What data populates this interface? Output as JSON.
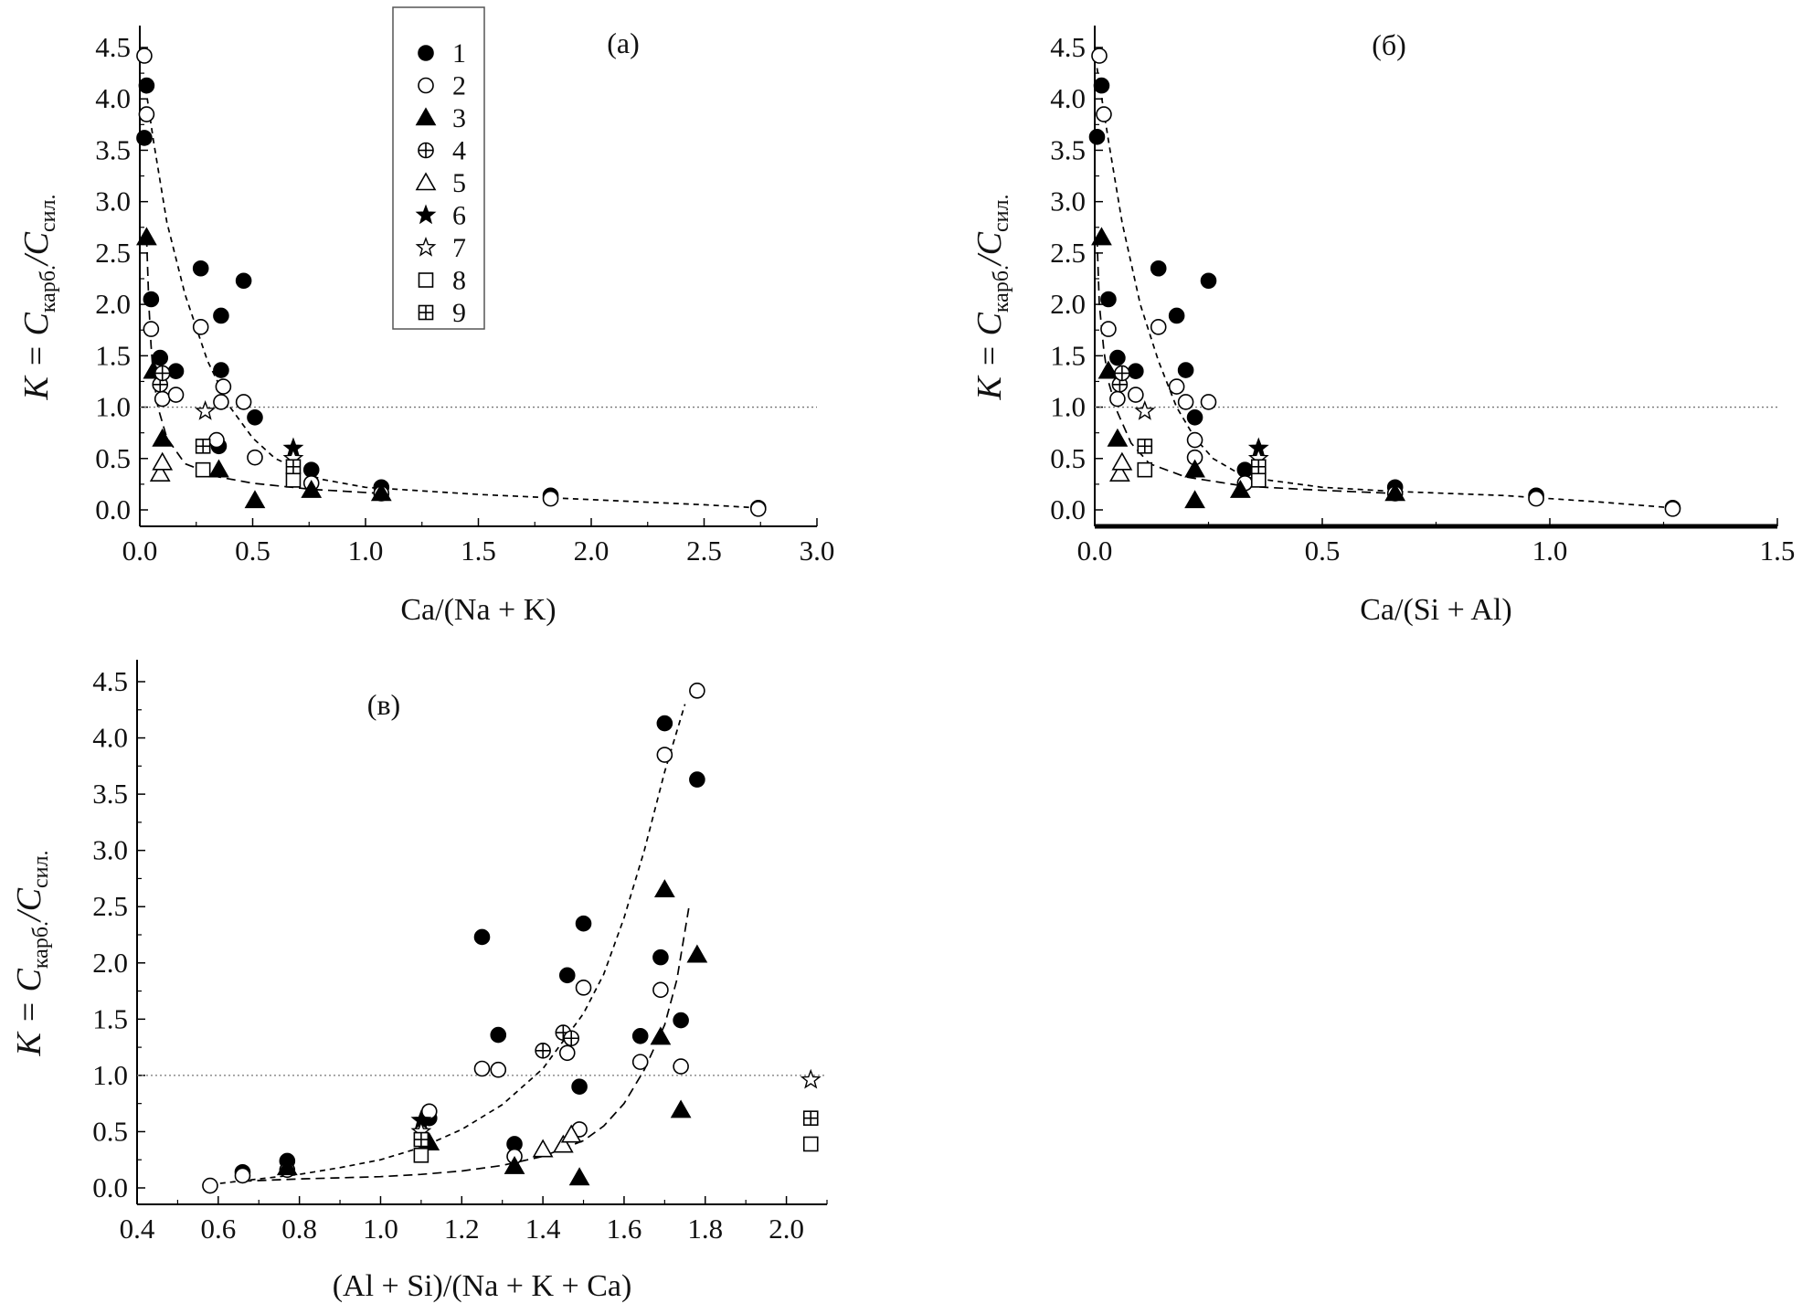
{
  "chart_data": [
    {
      "panel_label": "(a)",
      "type": "scatter",
      "xlabel": "Ca/(Na + K)",
      "ylabel": {
        "main": "K = C",
        "sub1": "карб.",
        "mid": "/C",
        "sub2": "сил."
      },
      "xlim": [
        0,
        3.0
      ],
      "ylim": [
        0,
        4.5
      ],
      "x_ticks": [
        "0.0",
        "0.5",
        "1.0",
        "1.5",
        "2.0",
        "2.5",
        "3.0"
      ],
      "y_ticks": [
        "0.0",
        "0.5",
        "1.0",
        "1.5",
        "2.0",
        "2.5",
        "3.0",
        "3.5",
        "4.0",
        "4.5"
      ],
      "reference_line": 1.0,
      "series": [
        {
          "marker": "filled-circle",
          "points": [
            [
              0.02,
              3.62
            ],
            [
              0.03,
              4.13
            ],
            [
              0.05,
              2.05
            ],
            [
              0.09,
              1.48
            ],
            [
              0.16,
              1.35
            ],
            [
              0.27,
              2.35
            ],
            [
              0.36,
              1.89
            ],
            [
              0.46,
              2.23
            ],
            [
              0.36,
              1.36
            ],
            [
              0.35,
              0.62
            ],
            [
              0.51,
              0.9
            ],
            [
              0.76,
              0.39
            ],
            [
              1.07,
              0.22
            ],
            [
              1.82,
              0.14
            ],
            [
              2.74,
              0.02
            ]
          ]
        },
        {
          "marker": "open-circle",
          "points": [
            [
              0.02,
              4.42
            ],
            [
              0.03,
              3.85
            ],
            [
              0.05,
              1.76
            ],
            [
              0.1,
              1.08
            ],
            [
              0.16,
              1.12
            ],
            [
              0.27,
              1.78
            ],
            [
              0.36,
              1.05
            ],
            [
              0.37,
              1.2
            ],
            [
              0.46,
              1.05
            ],
            [
              0.34,
              0.68
            ],
            [
              0.51,
              0.51
            ],
            [
              0.76,
              0.26
            ],
            [
              1.07,
              0.16
            ],
            [
              1.82,
              0.11
            ],
            [
              2.74,
              0.01
            ]
          ]
        },
        {
          "marker": "filled-triangle",
          "points": [
            [
              0.03,
              2.65
            ],
            [
              0.06,
              1.35
            ],
            [
              0.1,
              0.69
            ],
            [
              0.35,
              0.39
            ],
            [
              0.51,
              0.09
            ],
            [
              0.76,
              0.19
            ],
            [
              1.07,
              0.16
            ]
          ]
        },
        {
          "marker": "circle-plus",
          "points": [
            [
              0.09,
              1.22
            ],
            [
              0.1,
              1.33
            ]
          ]
        },
        {
          "marker": "open-triangle",
          "points": [
            [
              0.09,
              0.35
            ],
            [
              0.1,
              0.46
            ]
          ]
        },
        {
          "marker": "filled-star",
          "points": [
            [
              0.68,
              0.6
            ]
          ]
        },
        {
          "marker": "open-star",
          "points": [
            [
              0.29,
              0.96
            ],
            [
              0.68,
              0.5
            ]
          ]
        },
        {
          "marker": "open-square",
          "points": [
            [
              0.28,
              0.39
            ],
            [
              0.68,
              0.29
            ]
          ]
        },
        {
          "marker": "square-plus",
          "points": [
            [
              0.28,
              0.62
            ],
            [
              0.68,
              0.42
            ]
          ]
        }
      ],
      "trend_curves": [
        [
          [
            0.02,
            4.2
          ],
          [
            0.06,
            3.6
          ],
          [
            0.12,
            2.8
          ],
          [
            0.2,
            2.1
          ],
          [
            0.3,
            1.45
          ],
          [
            0.4,
            1.0
          ],
          [
            0.5,
            0.7
          ],
          [
            0.6,
            0.5
          ],
          [
            0.8,
            0.3
          ],
          [
            1.0,
            0.22
          ],
          [
            1.5,
            0.15
          ],
          [
            2.0,
            0.1
          ],
          [
            2.5,
            0.05
          ],
          [
            2.74,
            0.02
          ]
        ],
        [
          [
            0.03,
            2.65
          ],
          [
            0.04,
            2.0
          ],
          [
            0.05,
            1.6
          ],
          [
            0.06,
            1.3
          ],
          [
            0.08,
            1.0
          ],
          [
            0.12,
            0.7
          ],
          [
            0.2,
            0.45
          ],
          [
            0.35,
            0.32
          ],
          [
            0.5,
            0.26
          ],
          [
            0.76,
            0.2
          ],
          [
            1.07,
            0.16
          ]
        ]
      ],
      "legend": {
        "labels": [
          "1",
          "2",
          "3",
          "4",
          "5",
          "6",
          "7",
          "8",
          "9"
        ],
        "placement": "top-center"
      }
    },
    {
      "panel_label": "(б)",
      "type": "scatter",
      "xlabel": "Ca/(Si + Al)",
      "ylabel": {
        "main": "K = C",
        "sub1": "карб.",
        "mid": "/C",
        "sub2": "сил."
      },
      "xlim": [
        0,
        1.5
      ],
      "ylim": [
        0,
        4.5
      ],
      "x_ticks": [
        "0.0",
        "0.5",
        "1.0",
        "1.5"
      ],
      "y_ticks": [
        "0.0",
        "0.5",
        "1.0",
        "1.5",
        "2.0",
        "2.5",
        "3.0",
        "3.5",
        "4.0",
        "4.5"
      ],
      "reference_line": 1.0,
      "series": [
        {
          "marker": "filled-circle",
          "points": [
            [
              0.005,
              3.63
            ],
            [
              0.015,
              4.13
            ],
            [
              0.03,
              2.05
            ],
            [
              0.05,
              1.48
            ],
            [
              0.09,
              1.35
            ],
            [
              0.14,
              2.35
            ],
            [
              0.18,
              1.89
            ],
            [
              0.25,
              2.23
            ],
            [
              0.2,
              1.36
            ],
            [
              0.22,
              0.9
            ],
            [
              0.33,
              0.39
            ],
            [
              0.66,
              0.22
            ],
            [
              0.97,
              0.14
            ],
            [
              1.27,
              0.02
            ]
          ]
        },
        {
          "marker": "open-circle",
          "points": [
            [
              0.01,
              4.42
            ],
            [
              0.02,
              3.85
            ],
            [
              0.03,
              1.76
            ],
            [
              0.05,
              1.08
            ],
            [
              0.09,
              1.12
            ],
            [
              0.14,
              1.78
            ],
            [
              0.18,
              1.2
            ],
            [
              0.2,
              1.05
            ],
            [
              0.25,
              1.05
            ],
            [
              0.22,
              0.68
            ],
            [
              0.22,
              0.51
            ],
            [
              0.33,
              0.26
            ],
            [
              0.66,
              0.16
            ],
            [
              0.97,
              0.11
            ],
            [
              1.27,
              0.01
            ]
          ]
        },
        {
          "marker": "filled-triangle",
          "points": [
            [
              0.015,
              2.65
            ],
            [
              0.03,
              1.35
            ],
            [
              0.05,
              0.69
            ],
            [
              0.22,
              0.39
            ],
            [
              0.22,
              0.09
            ],
            [
              0.32,
              0.19
            ],
            [
              0.66,
              0.16
            ]
          ]
        },
        {
          "marker": "circle-plus",
          "points": [
            [
              0.055,
              1.22
            ],
            [
              0.06,
              1.33
            ]
          ]
        },
        {
          "marker": "open-triangle",
          "points": [
            [
              0.055,
              0.35
            ],
            [
              0.06,
              0.46
            ]
          ]
        },
        {
          "marker": "filled-star",
          "points": [
            [
              0.36,
              0.6
            ]
          ]
        },
        {
          "marker": "open-star",
          "points": [
            [
              0.11,
              0.96
            ],
            [
              0.36,
              0.5
            ]
          ]
        },
        {
          "marker": "open-square",
          "points": [
            [
              0.11,
              0.39
            ],
            [
              0.36,
              0.29
            ]
          ]
        },
        {
          "marker": "square-plus",
          "points": [
            [
              0.11,
              0.62
            ],
            [
              0.36,
              0.42
            ]
          ]
        }
      ],
      "trend_curves": [
        [
          [
            0.005,
            4.3
          ],
          [
            0.03,
            3.6
          ],
          [
            0.06,
            2.8
          ],
          [
            0.1,
            2.0
          ],
          [
            0.14,
            1.45
          ],
          [
            0.18,
            1.0
          ],
          [
            0.22,
            0.7
          ],
          [
            0.26,
            0.5
          ],
          [
            0.33,
            0.32
          ],
          [
            0.5,
            0.22
          ],
          [
            0.66,
            0.18
          ],
          [
            0.9,
            0.14
          ],
          [
            1.1,
            0.08
          ],
          [
            1.27,
            0.02
          ]
        ],
        [
          [
            0.005,
            2.65
          ],
          [
            0.01,
            2.0
          ],
          [
            0.02,
            1.55
          ],
          [
            0.03,
            1.25
          ],
          [
            0.05,
            0.95
          ],
          [
            0.08,
            0.65
          ],
          [
            0.12,
            0.45
          ],
          [
            0.2,
            0.32
          ],
          [
            0.33,
            0.23
          ],
          [
            0.5,
            0.19
          ],
          [
            0.66,
            0.16
          ]
        ]
      ]
    },
    {
      "panel_label": "(в)",
      "type": "scatter",
      "xlabel": "(Al + Si)/(Na + K + Ca)",
      "ylabel": {
        "main": "K = C",
        "sub1": "карб.",
        "mid": "/C",
        "sub2": "сил."
      },
      "xlim": [
        0.4,
        2.1
      ],
      "ylim": [
        0,
        4.5
      ],
      "x_ticks": [
        "0.4",
        "0.6",
        "0.8",
        "1.0",
        "1.2",
        "1.4",
        "1.6",
        "1.8",
        "2.0"
      ],
      "y_ticks": [
        "0.0",
        "0.5",
        "1.0",
        "1.5",
        "2.0",
        "2.5",
        "3.0",
        "3.5",
        "4.0",
        "4.5"
      ],
      "reference_line": 1.0,
      "series": [
        {
          "marker": "filled-circle",
          "points": [
            [
              0.66,
              0.14
            ],
            [
              0.77,
              0.24
            ],
            [
              1.12,
              0.62
            ],
            [
              1.25,
              2.23
            ],
            [
              1.29,
              1.36
            ],
            [
              1.33,
              0.39
            ],
            [
              1.46,
              1.89
            ],
            [
              1.49,
              0.9
            ],
            [
              1.5,
              2.35
            ],
            [
              1.64,
              1.35
            ],
            [
              1.69,
              2.05
            ],
            [
              1.7,
              4.13
            ],
            [
              1.74,
              1.49
            ],
            [
              1.78,
              3.63
            ]
          ]
        },
        {
          "marker": "open-circle",
          "points": [
            [
              0.58,
              0.02
            ],
            [
              0.66,
              0.11
            ],
            [
              0.77,
              0.16
            ],
            [
              1.12,
              0.68
            ],
            [
              1.25,
              1.06
            ],
            [
              1.29,
              1.05
            ],
            [
              1.33,
              0.28
            ],
            [
              1.46,
              1.2
            ],
            [
              1.49,
              0.52
            ],
            [
              1.5,
              1.78
            ],
            [
              1.64,
              1.12
            ],
            [
              1.69,
              1.76
            ],
            [
              1.7,
              3.85
            ],
            [
              1.74,
              1.08
            ],
            [
              1.78,
              4.42
            ]
          ]
        },
        {
          "marker": "filled-triangle",
          "points": [
            [
              0.77,
              0.18
            ],
            [
              1.12,
              0.4
            ],
            [
              1.33,
              0.19
            ],
            [
              1.49,
              0.09
            ],
            [
              1.69,
              1.34
            ],
            [
              1.7,
              2.65
            ],
            [
              1.74,
              0.69
            ],
            [
              1.78,
              2.07
            ]
          ]
        },
        {
          "marker": "circle-plus",
          "points": [
            [
              1.4,
              1.22
            ],
            [
              1.45,
              1.38
            ],
            [
              1.47,
              1.33
            ]
          ]
        },
        {
          "marker": "open-triangle",
          "points": [
            [
              1.4,
              0.34
            ],
            [
              1.45,
              0.38
            ],
            [
              1.47,
              0.47
            ]
          ]
        },
        {
          "marker": "filled-star",
          "points": [
            [
              1.1,
              0.6
            ]
          ]
        },
        {
          "marker": "open-star",
          "points": [
            [
              1.1,
              0.5
            ],
            [
              2.06,
              0.96
            ]
          ]
        },
        {
          "marker": "open-square",
          "points": [
            [
              1.1,
              0.29
            ],
            [
              2.06,
              0.39
            ]
          ]
        },
        {
          "marker": "square-plus",
          "points": [
            [
              1.1,
              0.43
            ],
            [
              2.06,
              0.62
            ]
          ]
        }
      ],
      "trend_curves": [
        [
          [
            0.58,
            0.03
          ],
          [
            0.7,
            0.08
          ],
          [
            0.8,
            0.12
          ],
          [
            0.9,
            0.18
          ],
          [
            1.0,
            0.25
          ],
          [
            1.1,
            0.36
          ],
          [
            1.2,
            0.52
          ],
          [
            1.3,
            0.74
          ],
          [
            1.4,
            1.06
          ],
          [
            1.5,
            1.55
          ],
          [
            1.55,
            1.9
          ],
          [
            1.6,
            2.4
          ],
          [
            1.65,
            3.0
          ],
          [
            1.7,
            3.7
          ],
          [
            1.75,
            4.3
          ]
        ],
        [
          [
            0.66,
            0.06
          ],
          [
            0.8,
            0.08
          ],
          [
            1.0,
            0.1
          ],
          [
            1.1,
            0.12
          ],
          [
            1.2,
            0.15
          ],
          [
            1.3,
            0.2
          ],
          [
            1.4,
            0.28
          ],
          [
            1.5,
            0.42
          ],
          [
            1.55,
            0.55
          ],
          [
            1.6,
            0.75
          ],
          [
            1.65,
            1.05
          ],
          [
            1.7,
            1.45
          ],
          [
            1.73,
            1.85
          ],
          [
            1.76,
            2.5
          ]
        ]
      ]
    }
  ]
}
